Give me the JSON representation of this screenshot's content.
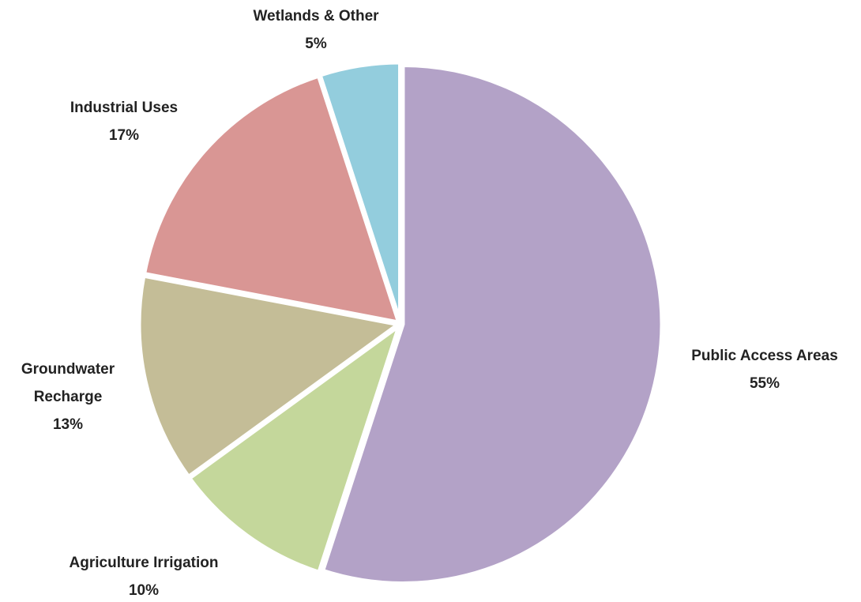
{
  "chart_data": {
    "type": "pie",
    "start_angle_deg": 0,
    "direction": "clockwise",
    "label_position": "outside",
    "slices": [
      {
        "label": "Public Access Areas",
        "value": 55,
        "value_label": "55%",
        "color": "#b3a2c7"
      },
      {
        "label": "Agriculture Irrigation",
        "value": 10,
        "value_label": "10%",
        "color": "#c4d79b"
      },
      {
        "label": "Groundwater Recharge",
        "value": 13,
        "value_label": "13%",
        "color": "#c4bd97"
      },
      {
        "label": "Industrial Uses",
        "value": 17,
        "value_label": "17%",
        "color": "#d99694"
      },
      {
        "label": "Wetlands & Other",
        "value": 5,
        "value_label": "5%",
        "color": "#93cddd"
      }
    ]
  }
}
